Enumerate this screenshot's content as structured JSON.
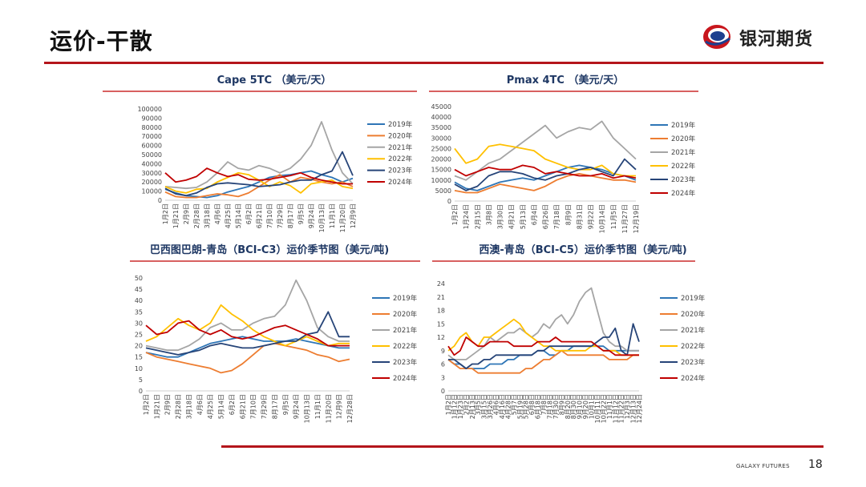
{
  "page": {
    "title": "运价-干散",
    "logo_text": "银河期货",
    "footer_brand": "GALAXY FUTURES",
    "page_number": "18"
  },
  "colors": {
    "2019": "#2e75b6",
    "2020": "#ed7d31",
    "2021": "#a5a5a5",
    "2022": "#ffc000",
    "2023": "#264478",
    "2024": "#c00000",
    "accent": "#b4151b"
  },
  "chart_data": [
    {
      "type": "line",
      "title": "Cape 5TC （美元/天）",
      "yticks": [
        "0",
        "10000",
        "20000",
        "30000",
        "40000",
        "50000",
        "60000",
        "70000",
        "80000",
        "90000",
        "100000"
      ],
      "ylim": [
        0,
        100000
      ],
      "xticks": [
        "1月2日",
        "1月21日",
        "2月9日",
        "2月28日",
        "3月18日",
        "4月6日",
        "4月25日",
        "5月14日",
        "6月2日",
        "6月21日",
        "7月10日",
        "7月29日",
        "8月17日",
        "9月5日",
        "9月24日",
        "10月13日",
        "11月1日",
        "11月20日",
        "12月9日"
      ],
      "series": [
        {
          "name": "2019年",
          "values": [
            12000,
            8000,
            5000,
            4000,
            3000,
            5000,
            9000,
            12000,
            15000,
            20000,
            25000,
            27000,
            28000,
            30000,
            32000,
            28000,
            25000,
            20000,
            24000
          ]
        },
        {
          "name": "2020年",
          "values": [
            9000,
            4000,
            3000,
            3000,
            5000,
            7000,
            6000,
            4000,
            8000,
            15000,
            22000,
            28000,
            20000,
            25000,
            23000,
            20000,
            18000,
            20000,
            15000
          ]
        },
        {
          "name": "2021年",
          "values": [
            15000,
            14000,
            13000,
            14000,
            20000,
            30000,
            42000,
            35000,
            33000,
            38000,
            35000,
            30000,
            35000,
            45000,
            60000,
            86000,
            55000,
            30000,
            18000
          ]
        },
        {
          "name": "2022年",
          "values": [
            15000,
            10000,
            8000,
            12000,
            13000,
            20000,
            25000,
            30000,
            28000,
            22000,
            15000,
            20000,
            16000,
            8000,
            18000,
            20000,
            22000,
            15000,
            13000
          ]
        },
        {
          "name": "2023年",
          "values": [
            13000,
            7000,
            5000,
            8000,
            14000,
            18000,
            19000,
            18000,
            17000,
            15000,
            16000,
            17000,
            20000,
            22000,
            22000,
            28000,
            32000,
            53000,
            27000
          ]
        },
        {
          "name": "2024年",
          "values": [
            30000,
            20000,
            22000,
            26000,
            35000,
            30000,
            26000,
            28000,
            23000,
            22000,
            23000,
            25000,
            27000,
            30000,
            25000,
            22000,
            20000,
            18000,
            18000
          ]
        }
      ]
    },
    {
      "type": "line",
      "title": "Pmax 4TC （美元/天）",
      "yticks": [
        "0",
        "5000",
        "10000",
        "15000",
        "20000",
        "25000",
        "30000",
        "35000",
        "40000",
        "45000"
      ],
      "ylim": [
        0,
        45000
      ],
      "xticks": [
        "1月2日",
        "1月24日",
        "2月15日",
        "3月8日",
        "3月30日",
        "4月21日",
        "5月13日",
        "6月4日",
        "6月26日",
        "7月18日",
        "8月9日",
        "8月31日",
        "9月22日",
        "10月14日",
        "11月5日",
        "11月27日",
        "12月19日"
      ],
      "series": [
        {
          "name": "2019年",
          "values": [
            9000,
            6000,
            5000,
            7000,
            9000,
            10000,
            11000,
            10000,
            12000,
            14000,
            16000,
            17000,
            16000,
            15000,
            13000,
            12000,
            10000
          ]
        },
        {
          "name": "2020年",
          "values": [
            5000,
            4000,
            4000,
            6000,
            8000,
            7000,
            6000,
            5000,
            7000,
            10000,
            12000,
            13000,
            12000,
            11000,
            10000,
            10000,
            9000
          ]
        },
        {
          "name": "2021年",
          "values": [
            12000,
            10000,
            14000,
            18000,
            20000,
            24000,
            28000,
            32000,
            36000,
            30000,
            33000,
            35000,
            34000,
            38000,
            30000,
            25000,
            20000
          ]
        },
        {
          "name": "2022年",
          "values": [
            25000,
            18000,
            20000,
            26000,
            27000,
            26000,
            25000,
            24000,
            20000,
            18000,
            16000,
            15000,
            15000,
            17000,
            13000,
            12000,
            12000
          ]
        },
        {
          "name": "2023年",
          "values": [
            8000,
            5000,
            7000,
            12000,
            14000,
            14000,
            13000,
            11000,
            10000,
            12000,
            13000,
            15000,
            16000,
            14000,
            12000,
            20000,
            15000
          ]
        },
        {
          "name": "2024年",
          "values": [
            15000,
            12000,
            14000,
            16000,
            15000,
            15000,
            17000,
            16000,
            13000,
            14000,
            13000,
            12000,
            12000,
            13000,
            11000,
            12000,
            11000
          ]
        }
      ]
    },
    {
      "type": "line",
      "title": "巴西图巴朗-青岛（BCI-C3）运价季节图（美元/吨)",
      "yticks": [
        "0",
        "5",
        "10",
        "15",
        "20",
        "25",
        "30",
        "35",
        "40",
        "45",
        "50"
      ],
      "ylim": [
        0,
        50
      ],
      "xticks": [
        "1月2日",
        "1月21日",
        "2月9日",
        "2月28日",
        "3月18日",
        "4月6日",
        "4月25日",
        "5月14日",
        "6月2日",
        "6月21日",
        "7月10日",
        "7月29日",
        "8月17日",
        "9月5日",
        "9月24日",
        "10月13日",
        "11月1日",
        "11月20日",
        "12月9日",
        "12月28日"
      ],
      "series": [
        {
          "name": "2019年",
          "values": [
            17,
            16,
            15,
            15,
            17,
            19,
            21,
            22,
            23,
            24,
            23,
            22,
            22,
            22,
            23,
            22,
            21,
            20,
            19,
            19
          ]
        },
        {
          "name": "2020年",
          "values": [
            17,
            15,
            14,
            13,
            12,
            11,
            10,
            8,
            9,
            12,
            16,
            20,
            21,
            20,
            19,
            18,
            16,
            15,
            13,
            14
          ]
        },
        {
          "name": "2021年",
          "values": [
            20,
            19,
            18,
            18,
            20,
            23,
            28,
            30,
            27,
            27,
            30,
            32,
            33,
            38,
            49,
            40,
            28,
            24,
            22,
            22
          ]
        },
        {
          "name": "2022年",
          "values": [
            22,
            24,
            28,
            32,
            29,
            27,
            30,
            38,
            34,
            31,
            27,
            24,
            22,
            20,
            22,
            24,
            22,
            20,
            21,
            21
          ]
        },
        {
          "name": "2023年",
          "values": [
            19,
            18,
            17,
            16,
            17,
            18,
            20,
            21,
            20,
            19,
            19,
            20,
            21,
            22,
            22,
            25,
            26,
            35,
            24,
            24
          ]
        },
        {
          "name": "2024年",
          "values": [
            29,
            25,
            26,
            30,
            31,
            27,
            25,
            27,
            24,
            23,
            24,
            26,
            28,
            29,
            27,
            25,
            23,
            20,
            20,
            20
          ]
        }
      ]
    },
    {
      "type": "line",
      "title": "西澳-青岛（BCI-C5）运价季节图（美元/吨)",
      "yticks": [
        "0",
        "3",
        "6",
        "9",
        "12",
        "15",
        "18",
        "21",
        "24"
      ],
      "ylim": [
        0,
        24
      ],
      "xticks": [
        "1月2日",
        "1月12日",
        "1月23日",
        "2月2日",
        "2月13日",
        "3月5日",
        "3月15日",
        "3月26日",
        "4月6日",
        "4月16日",
        "4月28日",
        "5月7日",
        "5月19日",
        "5月28日",
        "6月8日",
        "6月18日",
        "7月8日",
        "7月18日",
        "7月30日",
        "8月9日",
        "8月20日",
        "8月30日",
        "9月10日",
        "9月20日",
        "10月1日",
        "10月11日",
        "10月22日",
        "11月1日",
        "11月12日",
        "11月22日",
        "12月3日",
        "12月13日",
        "12月24日"
      ],
      "series": [
        {
          "name": "2019年",
          "values": [
            7,
            6,
            6,
            5,
            5,
            5,
            5,
            6,
            6,
            6,
            7,
            7,
            8,
            8,
            8,
            9,
            9,
            8,
            8,
            9,
            9,
            10,
            10,
            10,
            10,
            10,
            10,
            9,
            9,
            9,
            9,
            9,
            9
          ]
        },
        {
          "name": "2020年",
          "values": [
            7,
            6,
            5,
            5,
            5,
            4,
            4,
            4,
            4,
            4,
            4,
            4,
            4,
            5,
            5,
            6,
            7,
            7,
            8,
            9,
            8,
            8,
            8,
            8,
            8,
            8,
            8,
            7,
            7,
            7,
            7,
            8,
            8
          ]
        },
        {
          "name": "2021年",
          "values": [
            8,
            7,
            7,
            7,
            8,
            9,
            10,
            12,
            11,
            12,
            13,
            13,
            14,
            13,
            12,
            13,
            15,
            14,
            16,
            17,
            15,
            17,
            20,
            22,
            23,
            18,
            13,
            11,
            10,
            10,
            9,
            9,
            9
          ]
        },
        {
          "name": "2022年",
          "values": [
            9,
            10,
            12,
            13,
            11,
            10,
            12,
            12,
            13,
            14,
            15,
            16,
            15,
            13,
            12,
            11,
            10,
            10,
            9,
            9,
            9,
            9,
            9,
            9,
            10,
            10,
            9,
            9,
            9,
            8,
            8,
            8,
            8
          ]
        },
        {
          "name": "2023年",
          "values": [
            7,
            7,
            6,
            5,
            6,
            6,
            7,
            7,
            8,
            8,
            8,
            8,
            8,
            8,
            8,
            9,
            9,
            10,
            10,
            10,
            10,
            10,
            10,
            10,
            10,
            11,
            12,
            12,
            14,
            9,
            8,
            15,
            11
          ]
        },
        {
          "name": "2024年",
          "values": [
            10,
            8,
            9,
            12,
            11,
            10,
            10,
            11,
            11,
            11,
            11,
            10,
            10,
            10,
            10,
            11,
            11,
            11,
            12,
            11,
            11,
            11,
            11,
            11,
            11,
            10,
            9,
            9,
            8,
            8,
            8,
            8,
            8
          ]
        }
      ]
    }
  ]
}
